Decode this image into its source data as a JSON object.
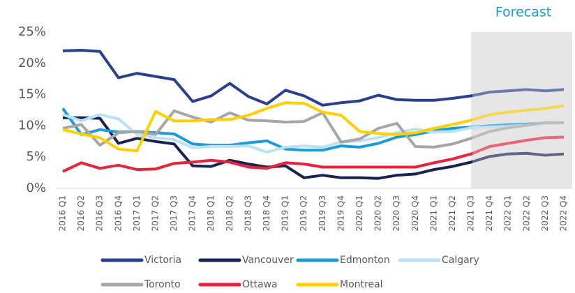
{
  "chart_data": {
    "type": "line",
    "annotation": "Forecast",
    "forecast_start": "2021 Q3",
    "categories": [
      "2016 Q1",
      "2016 Q2",
      "2016 Q3",
      "2016 Q4",
      "2017 Q1",
      "2017 Q2",
      "2017 Q3",
      "2017 Q4",
      "2018 Q1",
      "2018 Q2",
      "2018 Q3",
      "2018 Q4",
      "2019 Q1",
      "2019 Q2",
      "2019 Q3",
      "2019 Q4",
      "2020 Q1",
      "2020 Q2",
      "2020 Q3",
      "2020 Q4",
      "2021 Q1",
      "2021 Q2",
      "2021 Q3",
      "2021 Q4",
      "2022 Q1",
      "2022 Q2",
      "2022 Q3",
      "2022 Q4"
    ],
    "series": [
      {
        "name": "Victoria",
        "color": "#2b3f8f",
        "values": [
          22,
          22.1,
          21.9,
          17.7,
          18.4,
          17.9,
          17.4,
          13.9,
          14.8,
          16.8,
          14.7,
          13.5,
          15.7,
          14.8,
          13.3,
          13.7,
          14,
          14.9,
          14.2,
          14.1,
          14.1,
          14.4,
          14.8,
          15.4,
          15.6,
          15.8,
          15.6,
          15.8
        ]
      },
      {
        "name": "Vancouver",
        "color": "#1a2350",
        "values": [
          11.3,
          11.3,
          11.2,
          7.2,
          8,
          7.5,
          7.1,
          3.6,
          3.5,
          4.5,
          3.9,
          3.4,
          3.6,
          1.7,
          2.1,
          1.7,
          1.7,
          1.6,
          2.1,
          2.3,
          3,
          3.5,
          4.2,
          5.1,
          5.5,
          5.6,
          5.3,
          5.5
        ]
      },
      {
        "name": "Edmonton",
        "color": "#1b9bd7",
        "values": [
          12.8,
          8.6,
          9.4,
          9,
          9.1,
          8.9,
          8.7,
          7.1,
          6.9,
          6.9,
          7.3,
          7.6,
          6.3,
          6.1,
          6.1,
          6.8,
          6.6,
          7.2,
          8.2,
          8.6,
          9.2,
          9.6,
          9.8,
          10,
          10.2,
          10.3,
          10.4,
          10.5
        ]
      },
      {
        "name": "Calgary",
        "color": "#b9e2f5",
        "values": [
          11.8,
          10.8,
          11.8,
          11.1,
          8.6,
          8.1,
          7.8,
          6.5,
          6.7,
          6.7,
          6.8,
          5.8,
          6.6,
          6.8,
          6.6,
          7.4,
          7.6,
          8.1,
          8.9,
          9.5,
          9,
          9.1,
          9.7,
          9.8,
          9.9,
          10.1,
          10.4,
          10.5
        ]
      },
      {
        "name": "Toronto",
        "color": "#a6a6a6",
        "values": [
          9.6,
          10.2,
          6.9,
          8.9,
          9.1,
          8.6,
          12.4,
          11.4,
          10.6,
          12.1,
          10.9,
          10.8,
          10.6,
          10.7,
          12.1,
          7.4,
          7.9,
          9.6,
          10.4,
          6.7,
          6.6,
          7.1,
          8,
          9.1,
          9.7,
          10.1,
          10.5,
          10.5
        ]
      },
      {
        "name": "Ottawa",
        "color": "#e8233c",
        "values": [
          2.7,
          4.1,
          3.2,
          3.7,
          3,
          3.1,
          4,
          4.2,
          4.5,
          4.2,
          3.4,
          3.2,
          4.1,
          3.9,
          3.4,
          3.4,
          3.4,
          3.4,
          3.4,
          3.4,
          4.1,
          4.7,
          5.5,
          6.7,
          7.2,
          7.7,
          8.1,
          8.2
        ]
      },
      {
        "name": "Montreal",
        "color": "#ffd000",
        "values": [
          9.4,
          8.7,
          8.1,
          6.3,
          6,
          12.3,
          10.8,
          10.8,
          11,
          11,
          11.7,
          12.8,
          13.7,
          13.6,
          12.2,
          11.7,
          9.1,
          8.8,
          8.6,
          8.9,
          9.6,
          10.2,
          10.9,
          11.8,
          12.2,
          12.5,
          12.8,
          13.2
        ]
      }
    ],
    "ylim": [
      0,
      25
    ],
    "yticks": [
      {
        "value": 0,
        "label": "0%"
      },
      {
        "value": 5,
        "label": "5%"
      },
      {
        "value": 10,
        "label": "10%"
      },
      {
        "value": 15,
        "label": "15%"
      },
      {
        "value": 20,
        "label": "20%"
      },
      {
        "value": 25,
        "label": "25%"
      }
    ],
    "grid": false
  }
}
